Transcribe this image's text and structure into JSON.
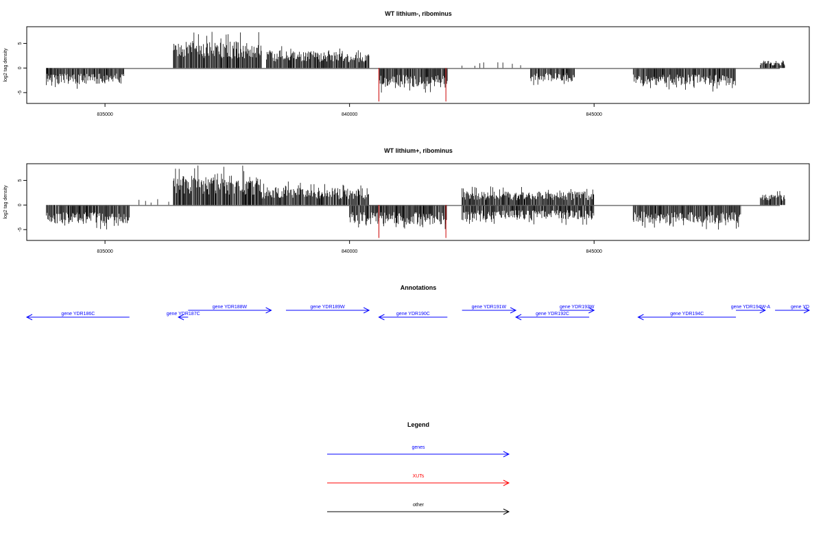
{
  "chart_data": [
    {
      "type": "bar",
      "title": "WT lithium-, ribominus",
      "ylabel": "log2 tag density",
      "xlim": [
        833400,
        849400
      ],
      "ylim": [
        -7.2,
        8.4
      ],
      "x_ticks": [
        835000,
        840000,
        845000
      ],
      "y_ticks": [
        -5,
        0,
        5
      ],
      "profile": [
        {
          "start": 833800,
          "end": 835400,
          "sign": "neg",
          "mag": 3.2
        },
        {
          "start": 836400,
          "end": 838200,
          "sign": "pos",
          "mag": 5.5
        },
        {
          "start": 838300,
          "end": 839300,
          "sign": "pos",
          "mag": 3.6
        },
        {
          "start": 839300,
          "end": 840400,
          "sign": "pos",
          "mag": 3.3
        },
        {
          "start": 840600,
          "end": 842000,
          "sign": "neg",
          "mag": 4.0
        },
        {
          "start": 842300,
          "end": 843500,
          "sign": "pos",
          "mag": 1.2,
          "sparse": true
        },
        {
          "start": 843700,
          "end": 844600,
          "sign": "neg",
          "mag": 2.8
        },
        {
          "start": 845800,
          "end": 847900,
          "sign": "neg",
          "mag": 3.6
        },
        {
          "start": 848400,
          "end": 848900,
          "sign": "pos",
          "mag": 1.5
        }
      ],
      "xut_marks": [
        {
          "x": 840600,
          "value": -6.8
        },
        {
          "x": 841970,
          "value": -6.8
        }
      ]
    },
    {
      "type": "bar",
      "title": "WT lithium+, ribominus",
      "ylabel": "log2 tag density",
      "xlim": [
        833400,
        849400
      ],
      "ylim": [
        -7.2,
        8.4
      ],
      "x_ticks": [
        835000,
        840000,
        845000
      ],
      "y_ticks": [
        -5,
        0,
        5
      ],
      "profile": [
        {
          "start": 833800,
          "end": 835500,
          "sign": "neg",
          "mag": 3.8
        },
        {
          "start": 835500,
          "end": 836400,
          "sign": "pos",
          "mag": 1.2,
          "sparse": true
        },
        {
          "start": 836400,
          "end": 838200,
          "sign": "pos",
          "mag": 6.0
        },
        {
          "start": 838200,
          "end": 839400,
          "sign": "pos",
          "mag": 3.8
        },
        {
          "start": 839400,
          "end": 840400,
          "sign": "pos",
          "mag": 3.5
        },
        {
          "start": 840000,
          "end": 842000,
          "sign": "neg",
          "mag": 4.0
        },
        {
          "start": 842300,
          "end": 845000,
          "sign": "pos",
          "mag": 2.8
        },
        {
          "start": 842300,
          "end": 845000,
          "sign": "neg",
          "mag": 3.0
        },
        {
          "start": 845800,
          "end": 848000,
          "sign": "neg",
          "mag": 3.8
        },
        {
          "start": 848400,
          "end": 848900,
          "sign": "pos",
          "mag": 2.2
        }
      ],
      "xut_marks": [
        {
          "x": 840600,
          "value": -6.7
        },
        {
          "x": 841970,
          "value": -6.7
        }
      ]
    },
    {
      "type": "annotation-track",
      "title": "Annotations",
      "features": [
        {
          "label": "gene YDR186C",
          "start": 833400,
          "end": 835500,
          "strand": "-",
          "row": 0
        },
        {
          "label": "gene YDR187C",
          "start": 836500,
          "end": 836700,
          "strand": "-",
          "row": 0
        },
        {
          "label": "gene YDR188W",
          "start": 836700,
          "end": 838400,
          "strand": "+",
          "row": 1
        },
        {
          "label": "gene YDR189W",
          "start": 838700,
          "end": 840400,
          "strand": "+",
          "row": 1
        },
        {
          "label": "gene YDR190C",
          "start": 840600,
          "end": 842000,
          "strand": "-",
          "row": 0
        },
        {
          "label": "gene YDR191W",
          "start": 842300,
          "end": 843400,
          "strand": "+",
          "row": 1
        },
        {
          "label": "gene YDR192C",
          "start": 843400,
          "end": 844900,
          "strand": "-",
          "row": 0
        },
        {
          "label": "gene YDR193W",
          "start": 844300,
          "end": 845000,
          "strand": "+",
          "row": 1
        },
        {
          "label": "gene YDR194C",
          "start": 845900,
          "end": 847900,
          "strand": "-",
          "row": 0
        },
        {
          "label": "gene YDR194W-A",
          "start": 847900,
          "end": 848500,
          "strand": "+",
          "row": 1
        },
        {
          "label": "gene YD",
          "start": 848700,
          "end": 849400,
          "strand": "+",
          "row": 1
        }
      ]
    }
  ],
  "legend": {
    "title": "Legend",
    "items": [
      {
        "label": "genes",
        "color": "#0000ff"
      },
      {
        "label": "XUTs",
        "color": "#ff0000"
      },
      {
        "label": "other",
        "color": "#000000"
      }
    ]
  },
  "colors": {
    "signal": "#000000",
    "xut": "#cc0000",
    "gene": "#0000ff",
    "baseline": "#555555"
  }
}
